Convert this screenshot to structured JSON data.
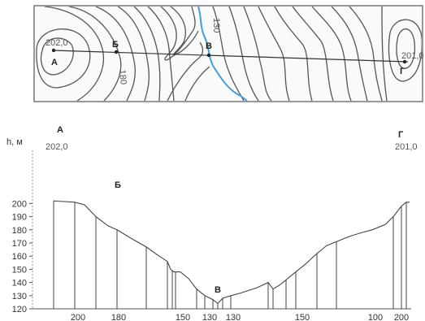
{
  "map": {
    "points": [
      {
        "id": "A",
        "label": "А",
        "elev": "202,0"
      },
      {
        "id": "B",
        "label": "Б"
      },
      {
        "id": "V",
        "label": "В"
      },
      {
        "id": "G",
        "label": "Г",
        "elev": "201,0"
      }
    ],
    "contour_labels": [
      "180",
      "130"
    ],
    "river_color": "#3fa0d8"
  },
  "profile": {
    "y_axis_label": "h, м",
    "y_ticks": [
      "200",
      "190",
      "180",
      "170",
      "160",
      "150",
      "140",
      "130",
      "120"
    ],
    "x_ticks": [
      "200",
      "180",
      "150",
      "130",
      "130",
      "150",
      "100",
      "200"
    ],
    "points": [
      {
        "label": "А",
        "elev": "202,0"
      },
      {
        "label": "Б"
      },
      {
        "label": "В"
      },
      {
        "label": "Г",
        "elev": "201,0"
      }
    ]
  },
  "chart_data": {
    "type": "line",
    "title": "",
    "xlabel": "",
    "ylabel": "h, м",
    "ylim": [
      120,
      205
    ],
    "y_ticks": [
      120,
      130,
      140,
      150,
      160,
      170,
      180,
      190,
      200
    ],
    "profile_elevations": [
      202,
      201,
      200,
      190,
      180,
      170,
      160,
      150,
      148,
      140,
      130,
      124,
      130,
      135,
      140,
      150,
      160,
      170,
      180,
      190,
      201
    ]
  }
}
